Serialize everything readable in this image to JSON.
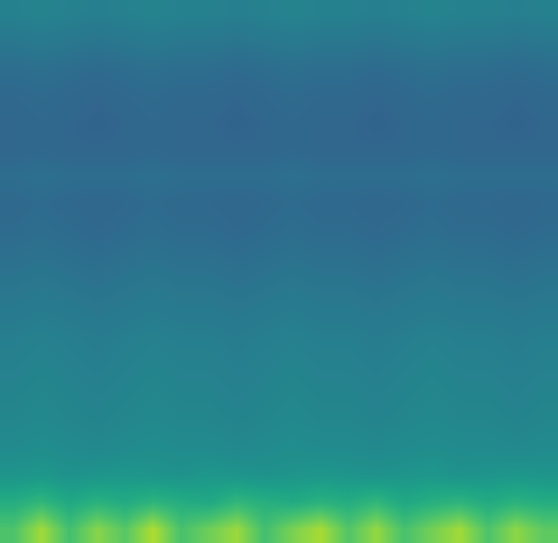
{
  "chart_data": {
    "type": "heatmap",
    "color": "viridis",
    "tick_labels": false,
    "color_range": [
      0,
      1
    ],
    "cells": [
      [
        0.44,
        0.45,
        0.44,
        0.43,
        0.44,
        0.45,
        0.44,
        0.44,
        0.43,
        0.44,
        0.45,
        0.44,
        0.44,
        0.43,
        0.44,
        0.45,
        0.44,
        0.44,
        0.43,
        0.44
      ],
      [
        0.4,
        0.41,
        0.4,
        0.39,
        0.4,
        0.41,
        0.4,
        0.4,
        0.39,
        0.4,
        0.41,
        0.4,
        0.4,
        0.39,
        0.4,
        0.41,
        0.4,
        0.4,
        0.39,
        0.4
      ],
      [
        0.36,
        0.37,
        0.36,
        0.35,
        0.36,
        0.37,
        0.36,
        0.36,
        0.35,
        0.36,
        0.37,
        0.36,
        0.36,
        0.35,
        0.36,
        0.37,
        0.36,
        0.36,
        0.35,
        0.36
      ],
      [
        0.34,
        0.35,
        0.34,
        0.33,
        0.34,
        0.35,
        0.34,
        0.34,
        0.33,
        0.34,
        0.35,
        0.34,
        0.34,
        0.33,
        0.34,
        0.35,
        0.34,
        0.34,
        0.33,
        0.34
      ],
      [
        0.33,
        0.34,
        0.33,
        0.32,
        0.33,
        0.34,
        0.33,
        0.33,
        0.32,
        0.33,
        0.34,
        0.33,
        0.33,
        0.32,
        0.33,
        0.34,
        0.33,
        0.33,
        0.32,
        0.33
      ],
      [
        0.33,
        0.34,
        0.33,
        0.33,
        0.33,
        0.34,
        0.33,
        0.33,
        0.33,
        0.33,
        0.34,
        0.33,
        0.33,
        0.33,
        0.33,
        0.34,
        0.33,
        0.33,
        0.33,
        0.33
      ],
      [
        0.36,
        0.37,
        0.36,
        0.36,
        0.36,
        0.37,
        0.36,
        0.36,
        0.36,
        0.36,
        0.37,
        0.36,
        0.36,
        0.36,
        0.36,
        0.37,
        0.36,
        0.36,
        0.36,
        0.36
      ],
      [
        0.34,
        0.35,
        0.34,
        0.33,
        0.34,
        0.35,
        0.34,
        0.34,
        0.33,
        0.34,
        0.35,
        0.34,
        0.34,
        0.33,
        0.34,
        0.35,
        0.34,
        0.34,
        0.33,
        0.34
      ],
      [
        0.35,
        0.36,
        0.35,
        0.34,
        0.35,
        0.36,
        0.35,
        0.35,
        0.34,
        0.35,
        0.36,
        0.35,
        0.35,
        0.34,
        0.35,
        0.36,
        0.35,
        0.35,
        0.34,
        0.35
      ],
      [
        0.37,
        0.38,
        0.37,
        0.36,
        0.37,
        0.38,
        0.37,
        0.37,
        0.36,
        0.37,
        0.38,
        0.37,
        0.37,
        0.36,
        0.37,
        0.38,
        0.37,
        0.37,
        0.36,
        0.37
      ],
      [
        0.39,
        0.4,
        0.39,
        0.38,
        0.39,
        0.4,
        0.39,
        0.39,
        0.38,
        0.39,
        0.4,
        0.39,
        0.39,
        0.38,
        0.39,
        0.4,
        0.39,
        0.39,
        0.38,
        0.39
      ],
      [
        0.41,
        0.42,
        0.41,
        0.4,
        0.41,
        0.42,
        0.41,
        0.41,
        0.4,
        0.41,
        0.42,
        0.41,
        0.41,
        0.4,
        0.41,
        0.42,
        0.41,
        0.41,
        0.4,
        0.41
      ],
      [
        0.43,
        0.44,
        0.43,
        0.42,
        0.43,
        0.44,
        0.43,
        0.43,
        0.42,
        0.43,
        0.44,
        0.43,
        0.43,
        0.42,
        0.43,
        0.44,
        0.43,
        0.43,
        0.42,
        0.43
      ],
      [
        0.44,
        0.45,
        0.44,
        0.43,
        0.44,
        0.45,
        0.44,
        0.44,
        0.43,
        0.44,
        0.45,
        0.44,
        0.44,
        0.43,
        0.44,
        0.45,
        0.44,
        0.44,
        0.43,
        0.44
      ],
      [
        0.45,
        0.46,
        0.45,
        0.44,
        0.45,
        0.46,
        0.45,
        0.45,
        0.44,
        0.45,
        0.46,
        0.45,
        0.45,
        0.44,
        0.45,
        0.46,
        0.45,
        0.45,
        0.44,
        0.45
      ],
      [
        0.46,
        0.47,
        0.46,
        0.45,
        0.46,
        0.47,
        0.46,
        0.46,
        0.45,
        0.46,
        0.47,
        0.46,
        0.46,
        0.45,
        0.46,
        0.47,
        0.46,
        0.46,
        0.45,
        0.46
      ],
      [
        0.48,
        0.49,
        0.48,
        0.47,
        0.48,
        0.49,
        0.48,
        0.48,
        0.47,
        0.48,
        0.49,
        0.48,
        0.48,
        0.47,
        0.48,
        0.49,
        0.48,
        0.48,
        0.47,
        0.48
      ],
      [
        0.52,
        0.53,
        0.51,
        0.52,
        0.53,
        0.52,
        0.51,
        0.53,
        0.52,
        0.51,
        0.52,
        0.53,
        0.52,
        0.51,
        0.52,
        0.53,
        0.51,
        0.52,
        0.53,
        0.52
      ],
      [
        0.62,
        0.66,
        0.6,
        0.64,
        0.61,
        0.65,
        0.62,
        0.6,
        0.66,
        0.63,
        0.61,
        0.64,
        0.62,
        0.66,
        0.6,
        0.63,
        0.65,
        0.61,
        0.64,
        0.62
      ],
      [
        0.72,
        0.86,
        0.7,
        0.82,
        0.74,
        0.88,
        0.71,
        0.78,
        0.85,
        0.7,
        0.8,
        0.87,
        0.73,
        0.84,
        0.71,
        0.79,
        0.86,
        0.72,
        0.83,
        0.75
      ]
    ]
  }
}
